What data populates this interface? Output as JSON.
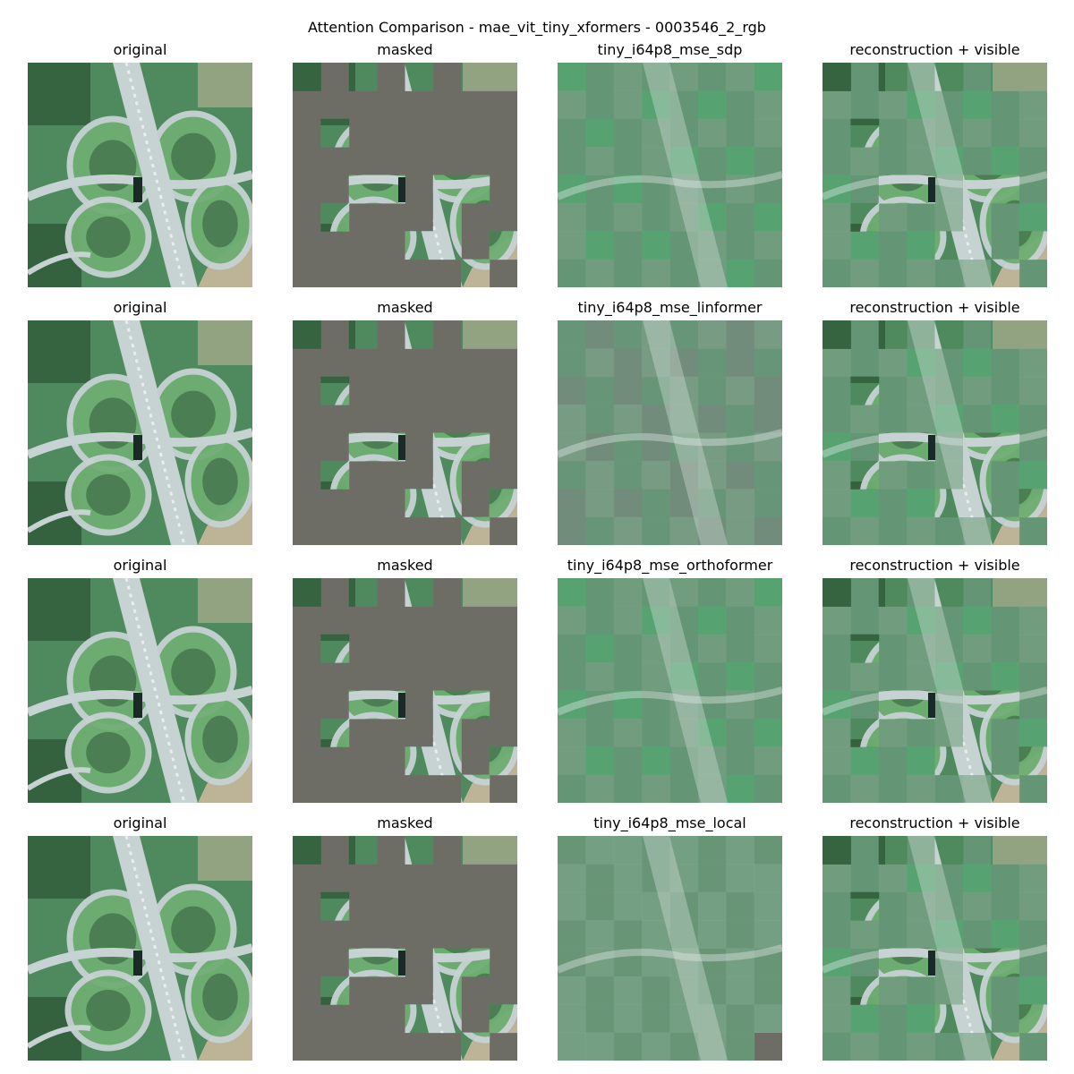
{
  "figure": {
    "title": "Attention Comparison - mae_vit_tiny_xformers - 0003546_2_rgb"
  },
  "column_titles": {
    "original": "original",
    "masked": "masked",
    "reconstruction_visible": "reconstruction + visible"
  },
  "models": [
    "tiny_i64p8_mse_sdp",
    "tiny_i64p8_mse_linformer",
    "tiny_i64p8_mse_orthoformer",
    "tiny_i64p8_mse_local"
  ],
  "colors": {
    "mask_gray": "#6d6c65",
    "vegetation_dark": "#2f5a3a",
    "vegetation_mid": "#4f8a5e",
    "vegetation_light": "#6fae72",
    "road": "#c7d2d3",
    "recon_base": "#5f8e70",
    "soil": "#c9b89f"
  },
  "image_content": {
    "scene": "aerial view of a cloverleaf highway interchange with vegetation"
  }
}
